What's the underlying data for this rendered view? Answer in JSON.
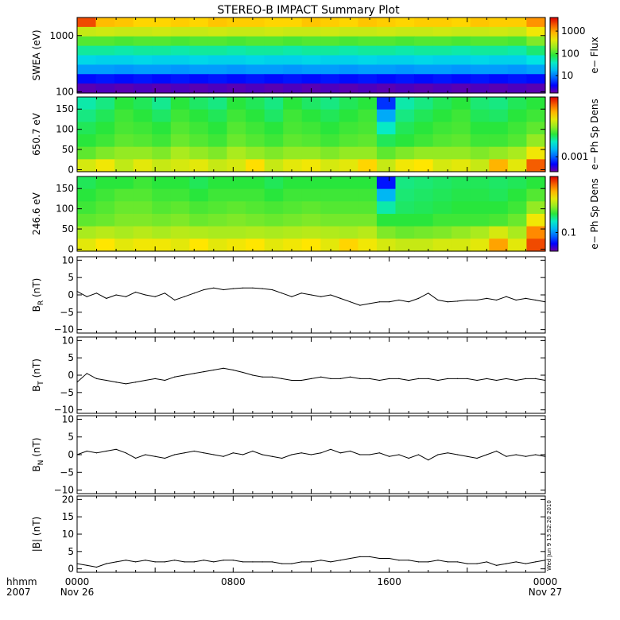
{
  "title": "STEREO-B IMPACT Summary Plot",
  "stamp": "Wed Jun  9 13:52:20 2010",
  "colors": {
    "axis": "#000000",
    "line": "#000000"
  },
  "x_axis": {
    "row1": [
      "0000",
      "0800",
      "1600",
      "0000"
    ],
    "row2": [
      "Nov 26",
      "",
      "",
      "Nov 27"
    ],
    "left_label_1": "hhmm",
    "left_label_2": "2007",
    "hours": [
      0,
      8,
      16,
      24
    ],
    "range": [
      0,
      24
    ]
  },
  "panels": [
    {
      "type": "heatmap",
      "ylabel": "SWEA (eV)",
      "yscale": "log",
      "ylim": [
        95,
        2100
      ],
      "yticks": [
        100,
        1000
      ],
      "ytick_labels": [
        "100",
        "1000"
      ],
      "colorbar": {
        "label": "e− Flux",
        "ticks": [
          "10",
          "100",
          "1000"
        ],
        "tick_pos": [
          0.23,
          0.52,
          0.82
        ]
      },
      "rows": [
        [
          4.6,
          3.95,
          3.9,
          3.8,
          3.8,
          3.85,
          3.8,
          3.9,
          3.85,
          3.85,
          3.8,
          3.8,
          3.9,
          3.85,
          3.8,
          3.9,
          3.85,
          3.8,
          3.85,
          3.85,
          3.8,
          3.9,
          3.85,
          3.85,
          4.2
        ],
        [
          3.3,
          3.35,
          3.3,
          3.3,
          3.35,
          3.3,
          3.3,
          3.35,
          3.3,
          3.3,
          3.35,
          3.3,
          3.3,
          3.35,
          3.3,
          3.3,
          3.35,
          3.3,
          3.3,
          3.35,
          3.3,
          3.3,
          3.35,
          3.3,
          3.6
        ],
        [
          2.7,
          2.7,
          2.65,
          2.7,
          2.7,
          2.65,
          2.7,
          2.7,
          2.65,
          2.7,
          2.7,
          2.65,
          2.7,
          2.7,
          2.65,
          2.7,
          2.7,
          2.65,
          2.7,
          2.7,
          2.65,
          2.7,
          2.7,
          2.65,
          2.9
        ],
        [
          2.15,
          2.15,
          2.1,
          2.15,
          2.15,
          2.1,
          2.15,
          2.15,
          2.1,
          2.15,
          2.15,
          2.1,
          2.15,
          2.15,
          2.1,
          2.15,
          2.15,
          2.1,
          2.15,
          2.15,
          2.1,
          2.15,
          2.15,
          2.1,
          2.3
        ],
        [
          1.75,
          1.7,
          1.7,
          1.75,
          1.7,
          1.7,
          1.75,
          1.7,
          1.7,
          1.75,
          1.7,
          1.7,
          1.75,
          1.7,
          1.7,
          1.75,
          1.7,
          1.7,
          1.75,
          1.7,
          1.7,
          1.75,
          1.7,
          1.7,
          1.85
        ],
        [
          1.3,
          1.3,
          1.25,
          1.3,
          1.3,
          1.25,
          1.3,
          1.3,
          1.25,
          1.3,
          1.3,
          1.25,
          1.3,
          1.3,
          1.25,
          1.3,
          1.3,
          1.25,
          1.3,
          1.3,
          1.25,
          1.3,
          1.3,
          1.25,
          1.35
        ],
        [
          0.55,
          0.6,
          0.55,
          0.6,
          0.55,
          0.6,
          0.55,
          0.6,
          0.55,
          0.6,
          0.55,
          0.6,
          0.55,
          0.6,
          0.55,
          0.6,
          0.55,
          0.6,
          0.55,
          0.6,
          0.55,
          0.6,
          0.55,
          0.6,
          0.55
        ],
        [
          0.1,
          0.15,
          0.1,
          0.15,
          0.1,
          0.15,
          0.1,
          0.15,
          0.1,
          0.15,
          0.1,
          0.15,
          0.1,
          0.15,
          0.1,
          0.15,
          0.1,
          0.15,
          0.1,
          0.15,
          0.1,
          0.15,
          0.1,
          0.15,
          0.1
        ]
      ]
    },
    {
      "type": "heatmap",
      "ylabel": "650.7 eV",
      "yscale": "linear",
      "ylim": [
        -5,
        180
      ],
      "yticks": [
        0,
        50,
        100,
        150
      ],
      "ytick_labels": [
        "0",
        "50",
        "100",
        "150"
      ],
      "colorbar": {
        "label": "e− Ph Sp Dens",
        "ticks": [
          "0.001"
        ],
        "tick_pos": [
          0.2
        ]
      },
      "rows": [
        [
          0.42,
          0.45,
          0.5,
          0.48,
          0.44,
          0.5,
          0.47,
          0.45,
          0.5,
          0.48,
          0.45,
          0.5,
          0.47,
          0.45,
          0.48,
          0.5,
          0.15,
          0.42,
          0.45,
          0.48,
          0.5,
          0.46,
          0.45,
          0.48,
          0.5
        ],
        [
          0.45,
          0.48,
          0.52,
          0.5,
          0.47,
          0.52,
          0.5,
          0.48,
          0.52,
          0.5,
          0.47,
          0.52,
          0.5,
          0.48,
          0.5,
          0.52,
          0.28,
          0.45,
          0.48,
          0.5,
          0.52,
          0.48,
          0.47,
          0.5,
          0.52
        ],
        [
          0.48,
          0.5,
          0.53,
          0.52,
          0.5,
          0.54,
          0.52,
          0.5,
          0.54,
          0.52,
          0.5,
          0.53,
          0.52,
          0.5,
          0.52,
          0.53,
          0.4,
          0.48,
          0.5,
          0.52,
          0.53,
          0.5,
          0.5,
          0.52,
          0.55
        ],
        [
          0.5,
          0.52,
          0.55,
          0.54,
          0.52,
          0.56,
          0.54,
          0.52,
          0.56,
          0.54,
          0.52,
          0.55,
          0.54,
          0.52,
          0.54,
          0.55,
          0.48,
          0.5,
          0.52,
          0.54,
          0.55,
          0.52,
          0.52,
          0.54,
          0.6
        ],
        [
          0.55,
          0.58,
          0.6,
          0.6,
          0.58,
          0.62,
          0.6,
          0.58,
          0.62,
          0.6,
          0.58,
          0.6,
          0.6,
          0.58,
          0.6,
          0.6,
          0.55,
          0.58,
          0.6,
          0.6,
          0.6,
          0.58,
          0.6,
          0.62,
          0.72
        ],
        [
          0.68,
          0.72,
          0.65,
          0.7,
          0.66,
          0.68,
          0.7,
          0.66,
          0.68,
          0.75,
          0.66,
          0.7,
          0.72,
          0.68,
          0.7,
          0.76,
          0.66,
          0.72,
          0.74,
          0.68,
          0.7,
          0.66,
          0.8,
          0.7,
          0.9
        ]
      ]
    },
    {
      "type": "heatmap",
      "ylabel": "246.6 eV",
      "yscale": "linear",
      "ylim": [
        -5,
        180
      ],
      "yticks": [
        0,
        50,
        100,
        150
      ],
      "ytick_labels": [
        "0",
        "50",
        "100",
        "150"
      ],
      "colorbar": {
        "label": "e− Ph Sp Dens",
        "ticks": [
          "0.1"
        ],
        "tick_pos": [
          0.25
        ]
      },
      "rows": [
        [
          0.48,
          0.5,
          0.5,
          0.52,
          0.5,
          0.5,
          0.48,
          0.5,
          0.5,
          0.5,
          0.48,
          0.5,
          0.5,
          0.5,
          0.5,
          0.5,
          0.12,
          0.45,
          0.46,
          0.47,
          0.48,
          0.48,
          0.47,
          0.48,
          0.5
        ],
        [
          0.5,
          0.52,
          0.54,
          0.54,
          0.52,
          0.52,
          0.5,
          0.52,
          0.52,
          0.52,
          0.5,
          0.52,
          0.52,
          0.52,
          0.52,
          0.52,
          0.3,
          0.46,
          0.47,
          0.48,
          0.49,
          0.49,
          0.48,
          0.5,
          0.54
        ],
        [
          0.52,
          0.54,
          0.56,
          0.56,
          0.54,
          0.55,
          0.53,
          0.54,
          0.55,
          0.54,
          0.53,
          0.54,
          0.55,
          0.54,
          0.54,
          0.54,
          0.42,
          0.47,
          0.48,
          0.49,
          0.5,
          0.5,
          0.5,
          0.52,
          0.6
        ],
        [
          0.55,
          0.56,
          0.58,
          0.58,
          0.57,
          0.58,
          0.56,
          0.57,
          0.58,
          0.57,
          0.56,
          0.57,
          0.58,
          0.57,
          0.57,
          0.57,
          0.5,
          0.5,
          0.5,
          0.52,
          0.52,
          0.52,
          0.53,
          0.56,
          0.72
        ],
        [
          0.62,
          0.64,
          0.62,
          0.64,
          0.62,
          0.64,
          0.63,
          0.62,
          0.62,
          0.63,
          0.62,
          0.63,
          0.64,
          0.63,
          0.62,
          0.64,
          0.58,
          0.56,
          0.57,
          0.58,
          0.6,
          0.62,
          0.68,
          0.62,
          0.85
        ],
        [
          0.7,
          0.74,
          0.7,
          0.72,
          0.72,
          0.7,
          0.74,
          0.7,
          0.72,
          0.74,
          0.7,
          0.72,
          0.74,
          0.7,
          0.76,
          0.72,
          0.68,
          0.66,
          0.66,
          0.68,
          0.68,
          0.7,
          0.82,
          0.7,
          0.92
        ]
      ]
    },
    {
      "type": "line",
      "ylabel_base": "B",
      "ylabel_sub": "R",
      "ylabel_unit": " (nT)",
      "ylim": [
        -11,
        11
      ],
      "yticks": [
        -10,
        -5,
        0,
        5,
        10
      ],
      "ytick_labels": [
        "−10",
        "−5",
        "0",
        "5",
        "10"
      ],
      "x": [
        0,
        0.5,
        1,
        1.5,
        2,
        2.5,
        3,
        3.5,
        4,
        4.5,
        5,
        5.5,
        6,
        6.5,
        7,
        7.5,
        8,
        8.5,
        9,
        9.5,
        10,
        10.5,
        11,
        11.5,
        12,
        12.5,
        13,
        13.5,
        14,
        14.5,
        15,
        15.5,
        16,
        16.5,
        17,
        17.5,
        18,
        18.5,
        19,
        19.5,
        20,
        20.5,
        21,
        21.5,
        22,
        22.5,
        23,
        23.5,
        24
      ],
      "y": [
        1.0,
        -0.5,
        0.5,
        -1.0,
        0.0,
        -0.5,
        0.8,
        0.0,
        -0.5,
        0.5,
        -1.5,
        -0.5,
        0.5,
        1.5,
        2.0,
        1.5,
        1.8,
        2.0,
        2.0,
        1.8,
        1.5,
        0.5,
        -0.5,
        0.5,
        0.0,
        -0.5,
        0.0,
        -1.0,
        -2.0,
        -3.0,
        -2.5,
        -2.0,
        -2.0,
        -1.5,
        -2.0,
        -1.0,
        0.5,
        -1.5,
        -2.0,
        -1.8,
        -1.5,
        -1.5,
        -1.0,
        -1.5,
        -0.5,
        -1.5,
        -1.0,
        -1.5,
        -2.0
      ]
    },
    {
      "type": "line",
      "ylabel_base": "B",
      "ylabel_sub": "T",
      "ylabel_unit": " (nT)",
      "ylim": [
        -11,
        11
      ],
      "yticks": [
        -10,
        -5,
        0,
        5,
        10
      ],
      "ytick_labels": [
        "−10",
        "−5",
        "0",
        "5",
        "10"
      ],
      "x": [
        0,
        0.5,
        1,
        1.5,
        2,
        2.5,
        3,
        3.5,
        4,
        4.5,
        5,
        5.5,
        6,
        6.5,
        7,
        7.5,
        8,
        8.5,
        9,
        9.5,
        10,
        10.5,
        11,
        11.5,
        12,
        12.5,
        13,
        13.5,
        14,
        14.5,
        15,
        15.5,
        16,
        16.5,
        17,
        17.5,
        18,
        18.5,
        19,
        19.5,
        20,
        20.5,
        21,
        21.5,
        22,
        22.5,
        23,
        23.5,
        24
      ],
      "y": [
        -2.0,
        0.5,
        -1.0,
        -1.5,
        -2.0,
        -2.5,
        -2.0,
        -1.5,
        -1.0,
        -1.5,
        -0.5,
        0.0,
        0.5,
        1.0,
        1.5,
        2.0,
        1.5,
        0.8,
        0.0,
        -0.5,
        -0.5,
        -1.0,
        -1.5,
        -1.5,
        -1.0,
        -0.5,
        -1.0,
        -1.0,
        -0.5,
        -1.0,
        -1.0,
        -1.5,
        -1.0,
        -1.0,
        -1.5,
        -1.0,
        -1.0,
        -1.5,
        -1.0,
        -1.0,
        -1.0,
        -1.5,
        -1.0,
        -1.5,
        -1.0,
        -1.5,
        -1.0,
        -1.0,
        -1.5
      ]
    },
    {
      "type": "line",
      "ylabel_base": "B",
      "ylabel_sub": "N",
      "ylabel_unit": " (nT)",
      "ylim": [
        -11,
        11
      ],
      "yticks": [
        -10,
        -5,
        0,
        5,
        10
      ],
      "ytick_labels": [
        "−10",
        "−5",
        "0",
        "5",
        "10"
      ],
      "x": [
        0,
        0.5,
        1,
        1.5,
        2,
        2.5,
        3,
        3.5,
        4,
        4.5,
        5,
        5.5,
        6,
        6.5,
        7,
        7.5,
        8,
        8.5,
        9,
        9.5,
        10,
        10.5,
        11,
        11.5,
        12,
        12.5,
        13,
        13.5,
        14,
        14.5,
        15,
        15.5,
        16,
        16.5,
        17,
        17.5,
        18,
        18.5,
        19,
        19.5,
        20,
        20.5,
        21,
        21.5,
        22,
        22.5,
        23,
        23.5,
        24
      ],
      "y": [
        0.0,
        1.0,
        0.5,
        1.0,
        1.5,
        0.5,
        -1.0,
        0.0,
        -0.5,
        -1.0,
        0.0,
        0.5,
        1.0,
        0.5,
        0.0,
        -0.5,
        0.5,
        0.0,
        1.0,
        0.0,
        -0.5,
        -1.0,
        0.0,
        0.5,
        0.0,
        0.5,
        1.5,
        0.5,
        1.0,
        0.0,
        0.0,
        0.5,
        -0.5,
        0.0,
        -1.0,
        0.0,
        -1.5,
        0.0,
        0.5,
        0.0,
        -0.5,
        -1.0,
        0.0,
        1.0,
        -0.5,
        0.0,
        -0.5,
        0.0,
        -0.5
      ]
    },
    {
      "type": "line",
      "ylabel_base": "|B|",
      "ylabel_sub": "",
      "ylabel_unit": " (nT)",
      "ylim": [
        -1,
        21
      ],
      "yticks": [
        0,
        5,
        10,
        15,
        20
      ],
      "ytick_labels": [
        "0",
        "5",
        "10",
        "15",
        "20"
      ],
      "x": [
        0,
        0.5,
        1,
        1.5,
        2,
        2.5,
        3,
        3.5,
        4,
        4.5,
        5,
        5.5,
        6,
        6.5,
        7,
        7.5,
        8,
        8.5,
        9,
        9.5,
        10,
        10.5,
        11,
        11.5,
        12,
        12.5,
        13,
        13.5,
        14,
        14.5,
        15,
        15.5,
        16,
        16.5,
        17,
        17.5,
        18,
        18.5,
        19,
        19.5,
        20,
        20.5,
        21,
        21.5,
        22,
        22.5,
        23,
        23.5,
        24
      ],
      "y": [
        1.5,
        1.0,
        0.5,
        1.5,
        2.0,
        2.5,
        2.0,
        2.5,
        2.0,
        2.0,
        2.5,
        2.0,
        2.0,
        2.5,
        2.0,
        2.5,
        2.5,
        2.0,
        2.0,
        2.0,
        2.0,
        1.5,
        1.5,
        2.0,
        2.0,
        2.5,
        2.0,
        2.5,
        3.0,
        3.5,
        3.5,
        3.0,
        3.0,
        2.5,
        2.5,
        2.0,
        2.0,
        2.5,
        2.0,
        2.0,
        1.5,
        1.5,
        2.0,
        1.0,
        1.5,
        2.0,
        1.5,
        2.0,
        2.5
      ]
    }
  ]
}
